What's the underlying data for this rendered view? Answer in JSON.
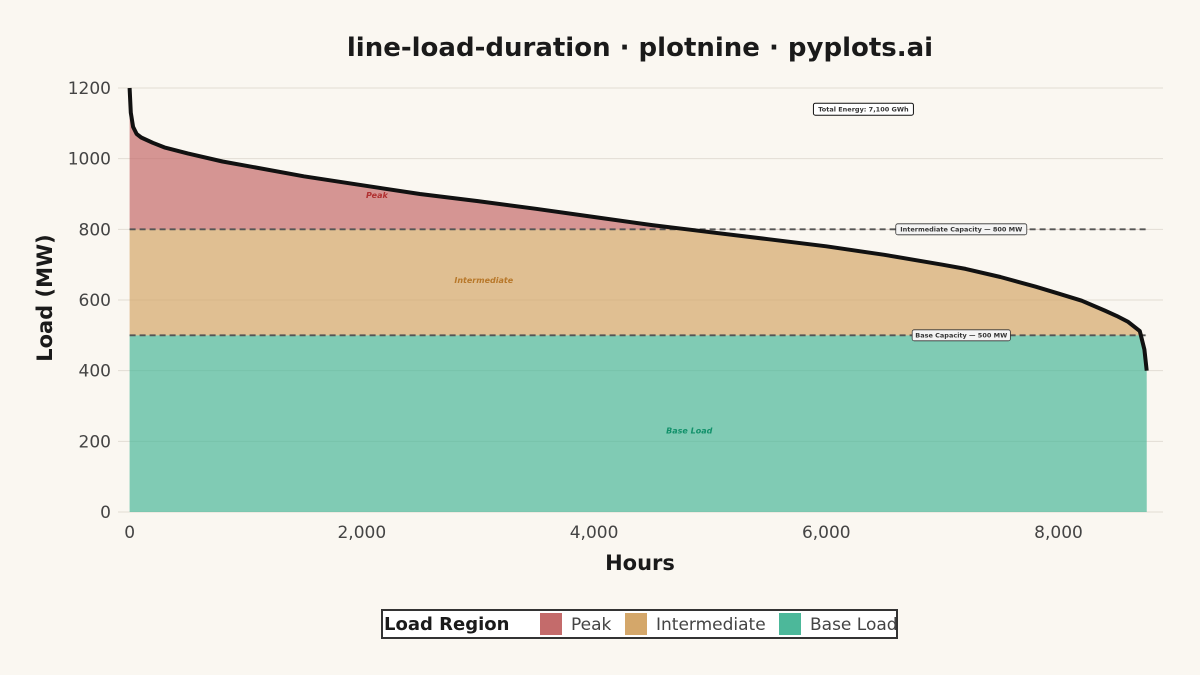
{
  "chart_data": {
    "type": "area",
    "title": "line-load-duration · plotnine · pyplots.ai",
    "xlabel": "Hours",
    "ylabel": "Load (MW)",
    "xlim": [
      -100,
      8900
    ],
    "ylim": [
      0,
      1200
    ],
    "x_ticks": [
      0,
      2000,
      4000,
      6000,
      8000
    ],
    "x_tick_labels": [
      "0",
      "2,000",
      "4,000",
      "6,000",
      "8,000"
    ],
    "y_ticks": [
      0,
      200,
      400,
      600,
      800,
      1000,
      1200
    ],
    "y_tick_labels": [
      "0",
      "200",
      "400",
      "600",
      "800",
      "1000",
      "1200"
    ],
    "grid": true,
    "load_curve": {
      "x": [
        0,
        10,
        30,
        60,
        100,
        200,
        300,
        500,
        800,
        1000,
        1500,
        2000,
        2500,
        3000,
        3500,
        4000,
        4500,
        4800,
        5000,
        5500,
        6000,
        6500,
        7000,
        7200,
        7500,
        7800,
        8000,
        8200,
        8400,
        8500,
        8600,
        8700,
        8740,
        8760
      ],
      "y": [
        1200,
        1130,
        1090,
        1070,
        1060,
        1045,
        1032,
        1015,
        992,
        980,
        950,
        925,
        900,
        880,
        858,
        835,
        812,
        800,
        792,
        772,
        752,
        728,
        700,
        688,
        665,
        638,
        618,
        598,
        570,
        555,
        538,
        512,
        460,
        400
      ]
    },
    "series": [
      {
        "name": "Peak",
        "color": "#c46b6b",
        "from": 800
      },
      {
        "name": "Intermediate",
        "color": "#d4a76a",
        "from": 500,
        "to": 800
      },
      {
        "name": "Base Load",
        "color": "#4cb89a",
        "from": 0,
        "to": 500
      }
    ],
    "reference_lines": [
      {
        "y": 800,
        "label": "Intermediate Capacity — 800 MW"
      },
      {
        "y": 500,
        "label": "Base Capacity — 500 MW"
      }
    ],
    "annotations": {
      "total_energy": "Total Energy: 7,100 GWh"
    },
    "legend": {
      "title": "Load Region",
      "placement": "bottom",
      "items": [
        "Peak",
        "Intermediate",
        "Base Load"
      ]
    }
  }
}
